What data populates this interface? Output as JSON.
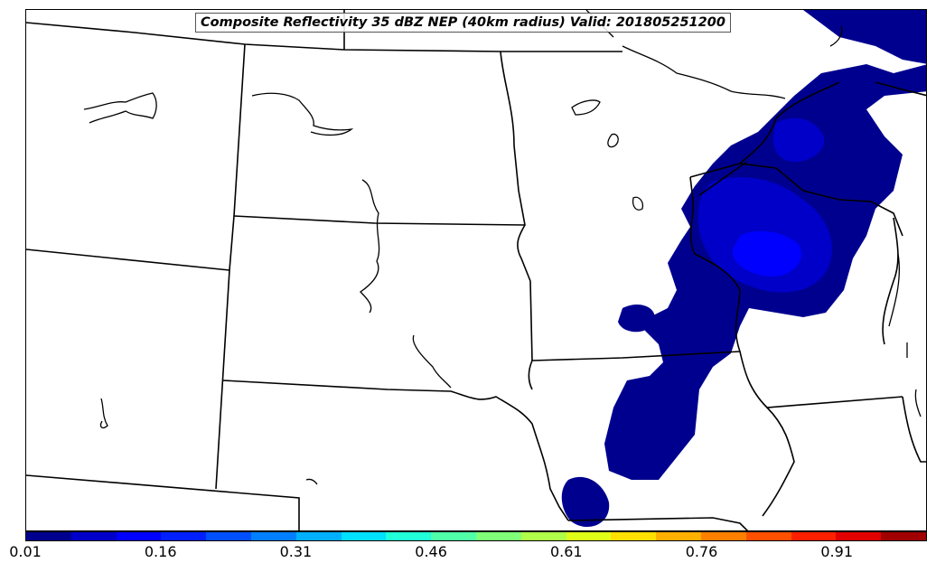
{
  "title": "Composite Reflectivity 35 dBZ NEP (40km radius) Valid: 201805251200",
  "colorbar": {
    "ticks": [
      "0.01",
      "0.16",
      "0.31",
      "0.46",
      "0.61",
      "0.76",
      "0.91"
    ],
    "colors": [
      "#00008f",
      "#0000c8",
      "#0000ff",
      "#0020ff",
      "#0050ff",
      "#0080ff",
      "#00b0ff",
      "#00e0ff",
      "#20ffd8",
      "#50ffa8",
      "#80ff78",
      "#b0ff48",
      "#e0ff18",
      "#ffe000",
      "#ffb000",
      "#ff8000",
      "#ff5000",
      "#ff2000",
      "#e00000",
      "#a00000"
    ]
  },
  "layers": {
    "probability_levels": [
      "#00008f",
      "#0000c8",
      "#0000ff"
    ]
  }
}
